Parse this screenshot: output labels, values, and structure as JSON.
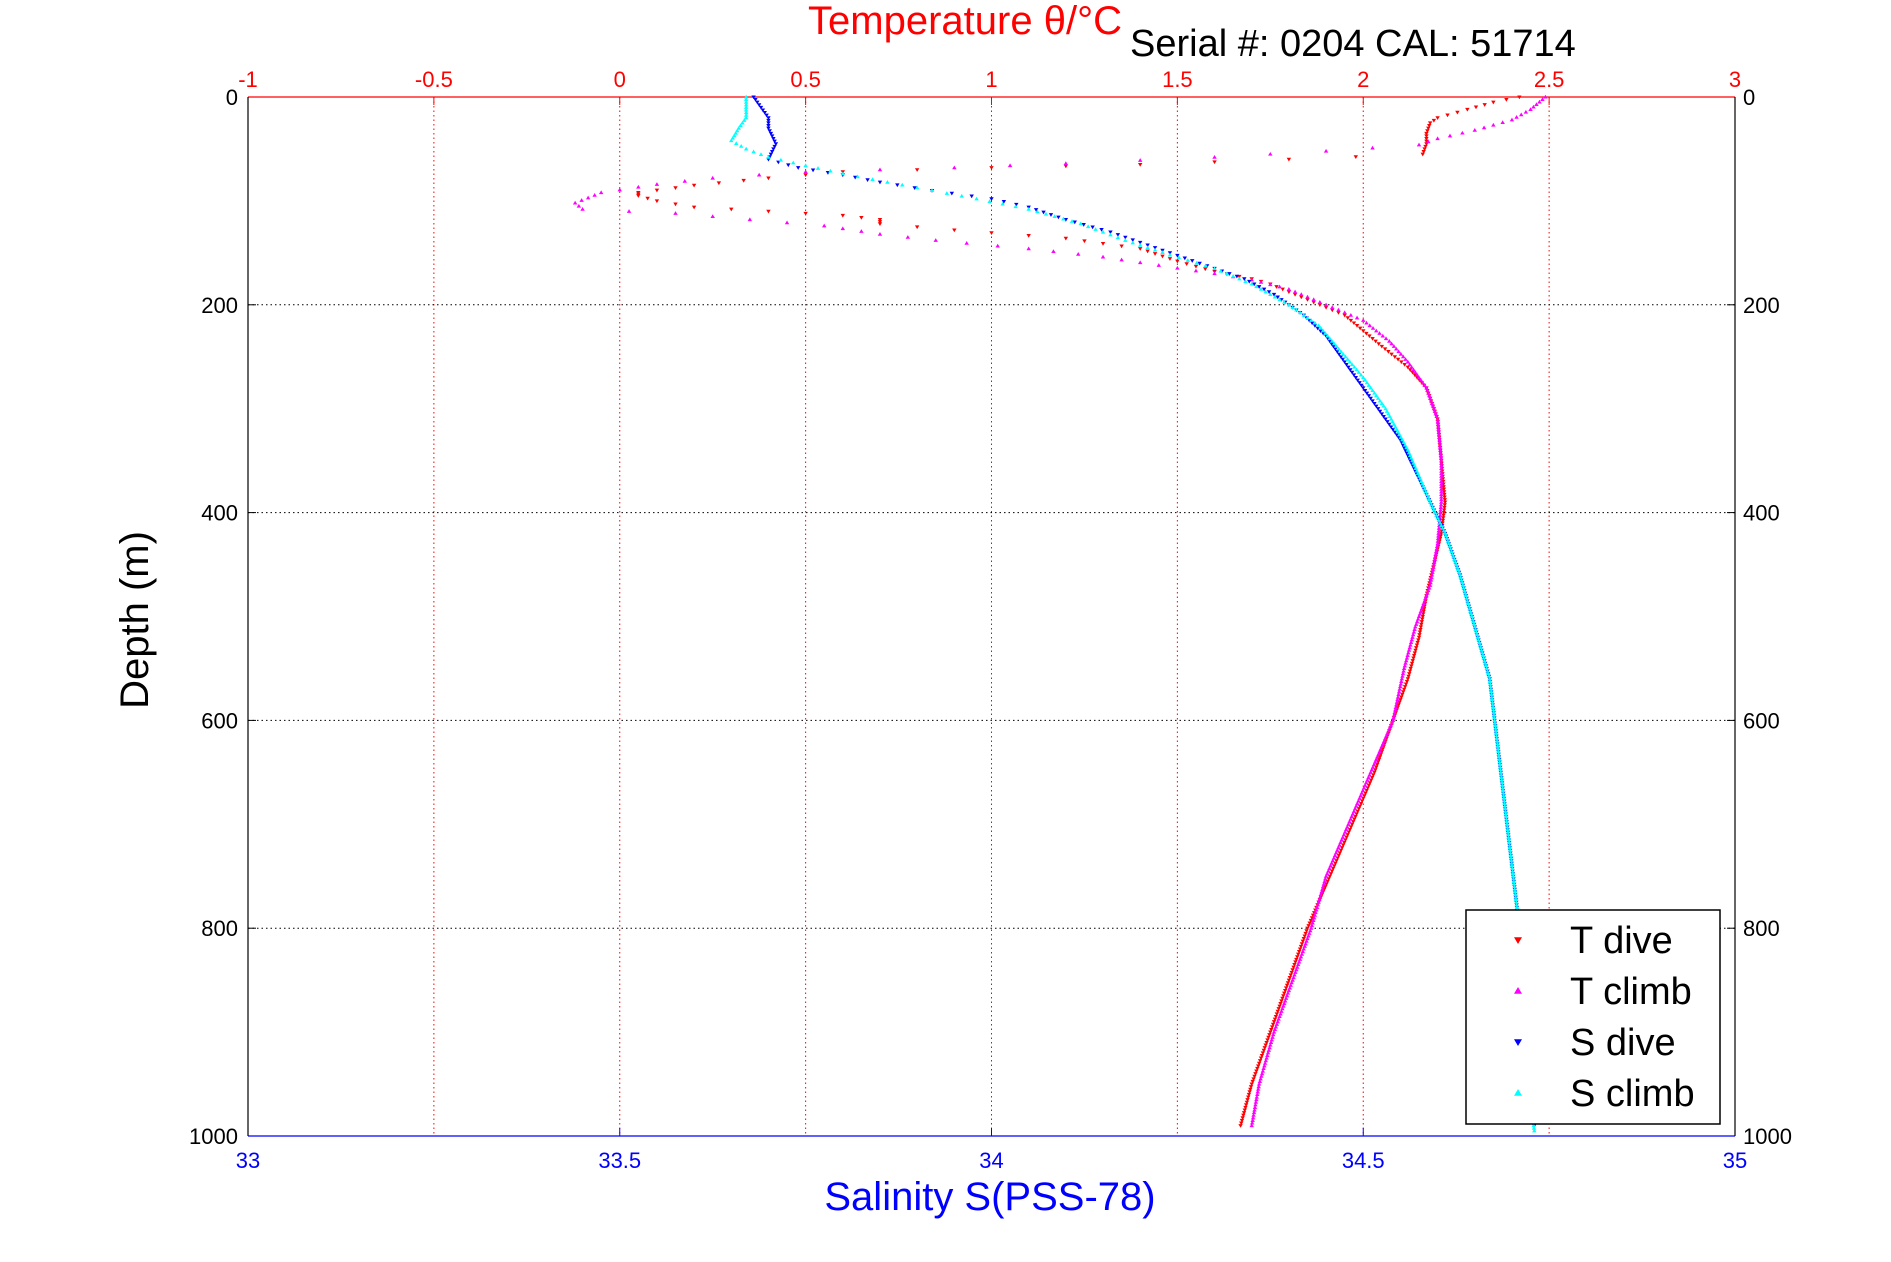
{
  "chart_data": {
    "type": "scatter",
    "title_top": "Temperature θ/°C",
    "title_bottom": "Salinity S(PSS-78)",
    "ylabel": "Depth (m)",
    "annotation": "Serial #: 0204  CAL: 51714",
    "ylim": [
      0,
      1000
    ],
    "y_reversed": true,
    "xlim_temperature": [
      -1,
      3
    ],
    "xlim_salinity": [
      33,
      35
    ],
    "yticks": [
      "0",
      "200",
      "400",
      "600",
      "800",
      "1000"
    ],
    "xticks_temperature": [
      "-1",
      "-0.5",
      "0",
      "0.5",
      "1",
      "1.5",
      "2",
      "2.5",
      "3"
    ],
    "xticks_salinity": [
      "33",
      "33.5",
      "34",
      "34.5",
      "35"
    ],
    "grid": true,
    "legend_position": "bottom-right",
    "colors": {
      "temperature_axis": "#ff0000",
      "salinity_axis": "#0000ff",
      "grid": "#000000"
    },
    "series": [
      {
        "name": "T dive",
        "color": "#ff0000",
        "marker": "triangle-down",
        "axis": "temperature",
        "points": [
          [
            2.42,
            0
          ],
          [
            2.35,
            5
          ],
          [
            2.28,
            12
          ],
          [
            2.2,
            20
          ],
          [
            2.18,
            25
          ],
          [
            2.17,
            35
          ],
          [
            2.17,
            45
          ],
          [
            2.16,
            55
          ],
          [
            1.8,
            60
          ],
          [
            1.4,
            65
          ],
          [
            1.0,
            68
          ],
          [
            0.6,
            72
          ],
          [
            0.4,
            78
          ],
          [
            0.2,
            85
          ],
          [
            0.05,
            92
          ],
          [
            0.05,
            95
          ],
          [
            0.1,
            100
          ],
          [
            0.2,
            106
          ],
          [
            0.4,
            110
          ],
          [
            0.6,
            114
          ],
          [
            0.7,
            118
          ],
          [
            0.7,
            122
          ],
          [
            0.9,
            128
          ],
          [
            1.2,
            136
          ],
          [
            1.4,
            146
          ],
          [
            1.5,
            158
          ],
          [
            1.6,
            168
          ],
          [
            1.7,
            175
          ],
          [
            1.75,
            180
          ],
          [
            1.85,
            195
          ],
          [
            1.95,
            210
          ],
          [
            2.0,
            225
          ],
          [
            2.05,
            240
          ],
          [
            2.12,
            260
          ],
          [
            2.17,
            280
          ],
          [
            2.2,
            310
          ],
          [
            2.21,
            350
          ],
          [
            2.22,
            390
          ],
          [
            2.21,
            420
          ],
          [
            2.19,
            450
          ],
          [
            2.17,
            480
          ],
          [
            2.15,
            520
          ],
          [
            2.12,
            560
          ],
          [
            2.08,
            600
          ],
          [
            2.03,
            650
          ],
          [
            1.97,
            700
          ],
          [
            1.91,
            750
          ],
          [
            1.85,
            800
          ],
          [
            1.8,
            850
          ],
          [
            1.75,
            900
          ],
          [
            1.7,
            950
          ],
          [
            1.67,
            990
          ]
        ]
      },
      {
        "name": "T climb",
        "color": "#ff00ff",
        "marker": "triangle-up",
        "axis": "temperature",
        "points": [
          [
            2.49,
            0
          ],
          [
            2.45,
            12
          ],
          [
            2.4,
            22
          ],
          [
            2.3,
            32
          ],
          [
            2.2,
            40
          ],
          [
            2.15,
            46
          ],
          [
            1.9,
            52
          ],
          [
            1.6,
            58
          ],
          [
            1.2,
            64
          ],
          [
            0.9,
            68
          ],
          [
            0.5,
            72
          ],
          [
            0.25,
            78
          ],
          [
            0.1,
            84
          ],
          [
            -0.05,
            92
          ],
          [
            -0.12,
            102
          ],
          [
            -0.1,
            108
          ],
          [
            0.15,
            112
          ],
          [
            0.35,
            118
          ],
          [
            0.55,
            124
          ],
          [
            0.7,
            132
          ],
          [
            0.85,
            138
          ],
          [
            1.1,
            146
          ],
          [
            1.3,
            154
          ],
          [
            1.45,
            162
          ],
          [
            1.6,
            170
          ],
          [
            1.7,
            176
          ],
          [
            1.8,
            185
          ],
          [
            1.9,
            200
          ],
          [
            2.0,
            215
          ],
          [
            2.07,
            235
          ],
          [
            2.12,
            255
          ],
          [
            2.17,
            280
          ],
          [
            2.2,
            310
          ],
          [
            2.21,
            350
          ],
          [
            2.21,
            390
          ],
          [
            2.2,
            430
          ],
          [
            2.18,
            470
          ],
          [
            2.14,
            510
          ],
          [
            2.11,
            550
          ],
          [
            2.08,
            600
          ],
          [
            2.02,
            650
          ],
          [
            1.96,
            700
          ],
          [
            1.9,
            750
          ],
          [
            1.86,
            800
          ],
          [
            1.81,
            850
          ],
          [
            1.76,
            900
          ],
          [
            1.72,
            950
          ],
          [
            1.7,
            990
          ]
        ]
      },
      {
        "name": "S dive",
        "color": "#0000ff",
        "marker": "triangle-down",
        "axis": "salinity",
        "points": [
          [
            33.68,
            0
          ],
          [
            33.69,
            10
          ],
          [
            33.7,
            20
          ],
          [
            33.7,
            30
          ],
          [
            33.71,
            45
          ],
          [
            33.7,
            60
          ],
          [
            33.74,
            68
          ],
          [
            33.8,
            75
          ],
          [
            33.85,
            82
          ],
          [
            33.92,
            90
          ],
          [
            34.0,
            98
          ],
          [
            34.05,
            106
          ],
          [
            34.1,
            118
          ],
          [
            34.16,
            130
          ],
          [
            34.22,
            145
          ],
          [
            34.28,
            160
          ],
          [
            34.34,
            175
          ],
          [
            34.38,
            190
          ],
          [
            34.42,
            210
          ],
          [
            34.45,
            230
          ],
          [
            34.48,
            260
          ],
          [
            34.52,
            300
          ],
          [
            34.55,
            330
          ],
          [
            34.57,
            360
          ],
          [
            34.59,
            390
          ],
          [
            34.61,
            420
          ],
          [
            34.63,
            460
          ],
          [
            34.65,
            510
          ],
          [
            34.67,
            560
          ],
          [
            34.68,
            620
          ],
          [
            34.69,
            680
          ],
          [
            34.7,
            740
          ],
          [
            34.71,
            800
          ],
          [
            34.71,
            860
          ],
          [
            34.72,
            920
          ],
          [
            34.73,
            990
          ]
        ]
      },
      {
        "name": "S climb",
        "color": "#00ffff",
        "marker": "triangle-up",
        "axis": "salinity",
        "points": [
          [
            33.67,
            0
          ],
          [
            33.67,
            10
          ],
          [
            33.67,
            20
          ],
          [
            33.66,
            30
          ],
          [
            33.65,
            42
          ],
          [
            33.67,
            50
          ],
          [
            33.7,
            58
          ],
          [
            33.75,
            66
          ],
          [
            33.8,
            74
          ],
          [
            33.86,
            82
          ],
          [
            33.92,
            90
          ],
          [
            33.98,
            98
          ],
          [
            34.05,
            108
          ],
          [
            34.12,
            122
          ],
          [
            34.18,
            138
          ],
          [
            34.24,
            152
          ],
          [
            34.3,
            165
          ],
          [
            34.35,
            180
          ],
          [
            34.4,
            200
          ],
          [
            34.44,
            220
          ],
          [
            34.47,
            245
          ],
          [
            34.5,
            270
          ],
          [
            34.53,
            300
          ],
          [
            34.56,
            340
          ],
          [
            34.59,
            390
          ],
          [
            34.61,
            420
          ],
          [
            34.63,
            460
          ],
          [
            34.65,
            510
          ],
          [
            34.67,
            560
          ],
          [
            34.68,
            620
          ],
          [
            34.69,
            680
          ],
          [
            34.7,
            740
          ],
          [
            34.71,
            800
          ],
          [
            34.72,
            860
          ],
          [
            34.72,
            920
          ],
          [
            34.73,
            995
          ]
        ]
      }
    ]
  }
}
